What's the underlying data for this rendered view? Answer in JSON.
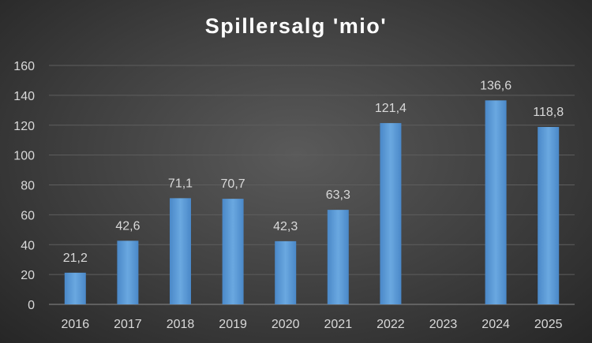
{
  "chart_data": {
    "type": "bar",
    "title": "Spillersalg 'mio'",
    "xlabel": "",
    "ylabel": "",
    "categories": [
      "2016",
      "2017",
      "2018",
      "2019",
      "2020",
      "2021",
      "2022",
      "2023",
      "2024",
      "2025"
    ],
    "values": [
      21.2,
      42.6,
      71.1,
      70.7,
      42.3,
      63.3,
      121.4,
      null,
      136.6,
      118.8
    ],
    "data_labels": [
      "21,2",
      "42,6",
      "71,1",
      "70,7",
      "42,3",
      "63,3",
      "121,4",
      "",
      "136,6",
      "118,8"
    ],
    "ylim": [
      0,
      160
    ],
    "yticks": [
      0,
      20,
      40,
      60,
      80,
      100,
      120,
      140,
      160
    ],
    "grid": true,
    "bar_color": "#5b9bd5",
    "background_color": "#404040"
  }
}
